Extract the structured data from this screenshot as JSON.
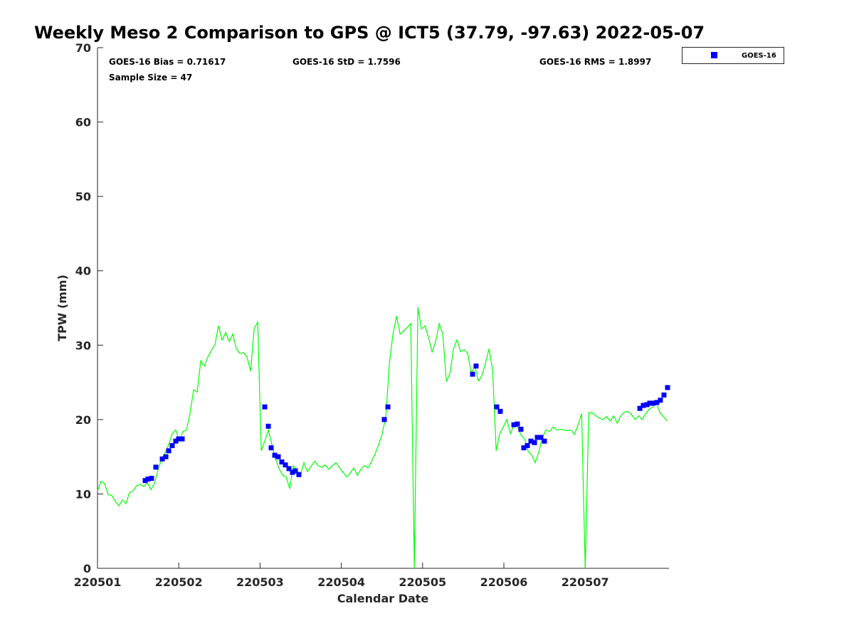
{
  "chart_data": {
    "type": "scatter",
    "title": "Weekly Meso 2 Comparison to GPS @ ICT5 (37.79, -97.63) 2022-05-07",
    "xlabel": "Calendar Date",
    "ylabel": "TPW (mm)",
    "ylim": [
      0,
      70
    ],
    "xlim_days": [
      0,
      7.03
    ],
    "x_tick_labels": [
      "220501",
      "220502",
      "220503",
      "220504",
      "220505",
      "220506",
      "220507"
    ],
    "y_ticks": [
      0,
      10,
      20,
      30,
      40,
      50,
      60,
      70
    ],
    "grid": false,
    "legend": {
      "position": "top-right-outside",
      "entries": [
        "GOES-16"
      ]
    },
    "stats": {
      "bias": "GOES-16 Bias = 0.71617",
      "std": "GOES-16 StD = 1.7596",
      "rms": "GOES-16 RMS = 1.8997",
      "sample": "Sample Size = 47"
    },
    "colors": {
      "gps_line": "#00ff00",
      "goes16": "#0000ff"
    },
    "series": [
      {
        "name": "GPS",
        "type": "line",
        "x_start_days": 0,
        "x_step_days": 0.0438,
        "values": [
          10.4,
          11.7,
          11.4,
          9.9,
          9.8,
          9.0,
          8.4,
          9.2,
          8.7,
          10.2,
          10.4,
          11.1,
          11.3,
          11.0,
          11.5,
          10.6,
          11.4,
          13.2,
          14.7,
          15.5,
          16.6,
          18.1,
          18.6,
          17.1,
          18.4,
          18.6,
          20.9,
          24.0,
          23.7,
          27.9,
          27.2,
          28.4,
          29.3,
          30.1,
          32.6,
          30.7,
          31.7,
          30.5,
          31.5,
          29.5,
          28.9,
          29.0,
          28.4,
          26.5,
          32.2,
          33.1,
          15.8,
          17.1,
          18.6,
          16.6,
          14.7,
          13.4,
          12.5,
          12.3,
          10.7,
          13.8,
          13.2,
          12.5,
          14.2,
          13.0,
          13.7,
          14.4,
          13.8,
          13.6,
          13.9,
          13.3,
          13.8,
          14.2,
          13.5,
          12.9,
          12.3,
          12.8,
          13.5,
          12.5,
          13.3,
          13.8,
          13.5,
          14.4,
          15.4,
          16.7,
          18.1,
          20.5,
          27.6,
          31.5,
          33.9,
          31.5,
          31.9,
          32.4,
          32.9,
          0,
          35.1,
          32.2,
          32.6,
          31.0,
          29.1,
          30.5,
          32.9,
          31.5,
          25.1,
          26.2,
          29.5,
          30.7,
          29.1,
          29.4,
          28.9,
          26.2,
          27.2,
          25.2,
          25.9,
          27.6,
          29.5,
          26.7,
          15.8,
          18.1,
          19.0,
          20.0,
          18.1,
          19.3,
          19.0,
          17.9,
          17.4,
          15.7,
          15.2,
          14.2,
          15.7,
          17.6,
          18.6,
          18.4,
          19.0,
          18.6,
          18.7,
          18.6,
          18.5,
          18.6,
          18.0,
          19.3,
          20.8,
          0,
          20.9,
          20.9,
          20.5,
          20.2,
          20.0,
          20.4,
          19.8,
          20.5,
          19.5,
          20.5,
          21.0,
          21.1,
          20.7,
          20.0,
          20.5,
          20.0,
          20.8,
          21.4,
          21.7,
          22.3,
          20.9,
          20.4,
          19.8
        ]
      },
      {
        "name": "GOES-16",
        "type": "scatter",
        "points": [
          [
            0.587,
            11.8
          ],
          [
            0.622,
            12.0
          ],
          [
            0.665,
            12.1
          ],
          [
            0.718,
            13.6
          ],
          [
            0.797,
            14.7
          ],
          [
            0.841,
            15.0
          ],
          [
            0.876,
            15.8
          ],
          [
            0.919,
            16.5
          ],
          [
            0.963,
            17.1
          ],
          [
            0.998,
            17.4
          ],
          [
            1.042,
            17.4
          ],
          [
            2.058,
            21.7
          ],
          [
            2.102,
            19.1
          ],
          [
            2.137,
            16.2
          ],
          [
            2.181,
            15.2
          ],
          [
            2.224,
            15.0
          ],
          [
            2.268,
            14.3
          ],
          [
            2.312,
            13.9
          ],
          [
            2.356,
            13.4
          ],
          [
            2.399,
            12.9
          ],
          [
            2.434,
            13.1
          ],
          [
            2.478,
            12.6
          ],
          [
            3.529,
            20.0
          ],
          [
            3.573,
            21.7
          ],
          [
            4.615,
            26.1
          ],
          [
            4.658,
            27.2
          ],
          [
            4.912,
            21.7
          ],
          [
            4.956,
            21.1
          ],
          [
            5.123,
            19.3
          ],
          [
            5.166,
            19.4
          ],
          [
            5.21,
            18.7
          ],
          [
            5.245,
            16.2
          ],
          [
            5.289,
            16.5
          ],
          [
            5.333,
            17.1
          ],
          [
            5.377,
            16.9
          ],
          [
            5.412,
            17.6
          ],
          [
            5.455,
            17.6
          ],
          [
            5.499,
            17.1
          ],
          [
            6.673,
            21.5
          ],
          [
            6.716,
            21.9
          ],
          [
            6.76,
            22.0
          ],
          [
            6.795,
            22.2
          ],
          [
            6.839,
            22.2
          ],
          [
            6.883,
            22.3
          ],
          [
            6.926,
            22.6
          ],
          [
            6.97,
            23.3
          ],
          [
            7.014,
            24.3
          ]
        ]
      }
    ]
  }
}
